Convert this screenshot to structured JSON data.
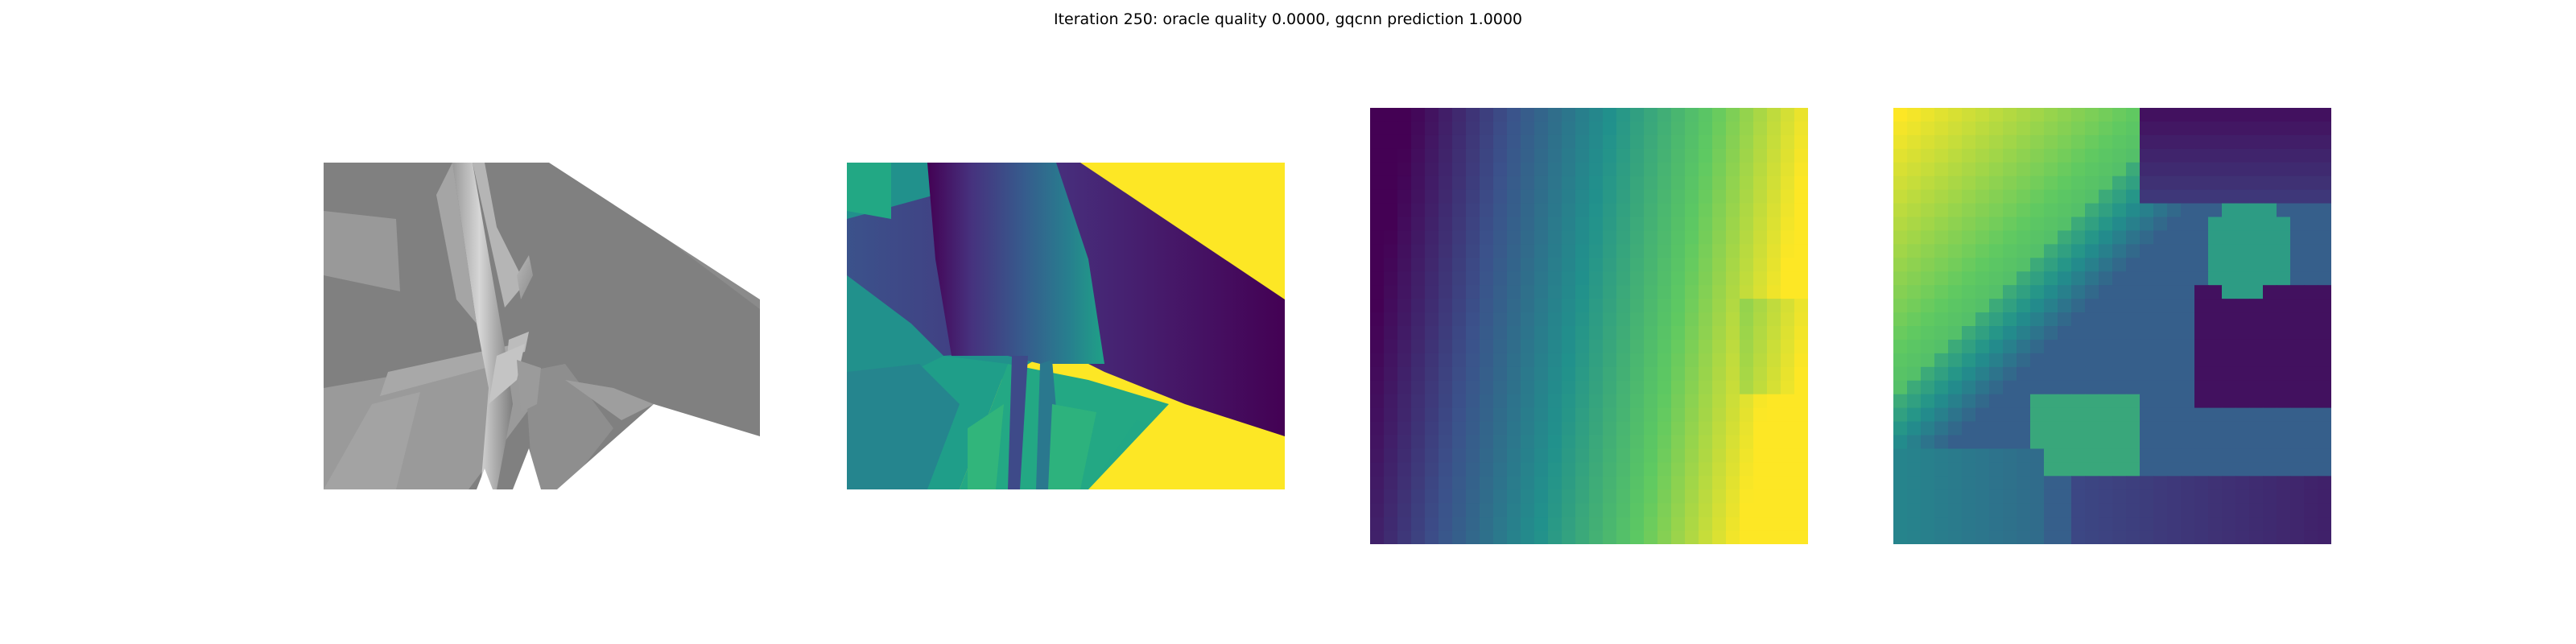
{
  "figure": {
    "title": "Iteration 250: oracle quality 0.0000, gqcnn prediction 1.0000"
  },
  "panels": [
    {
      "content": "rendered-gray-object"
    },
    {
      "content": "depth-image-viridis"
    },
    {
      "content": "depth-crop-pixelated-a"
    },
    {
      "content": "depth-crop-pixelated-b"
    }
  ],
  "colors": {
    "viridis_dark": "#440154",
    "viridis_blue": "#3b528b",
    "viridis_teal": "#21918c",
    "viridis_green": "#5ec962",
    "viridis_yellow": "#fde725",
    "gray_shade": "#808080"
  }
}
